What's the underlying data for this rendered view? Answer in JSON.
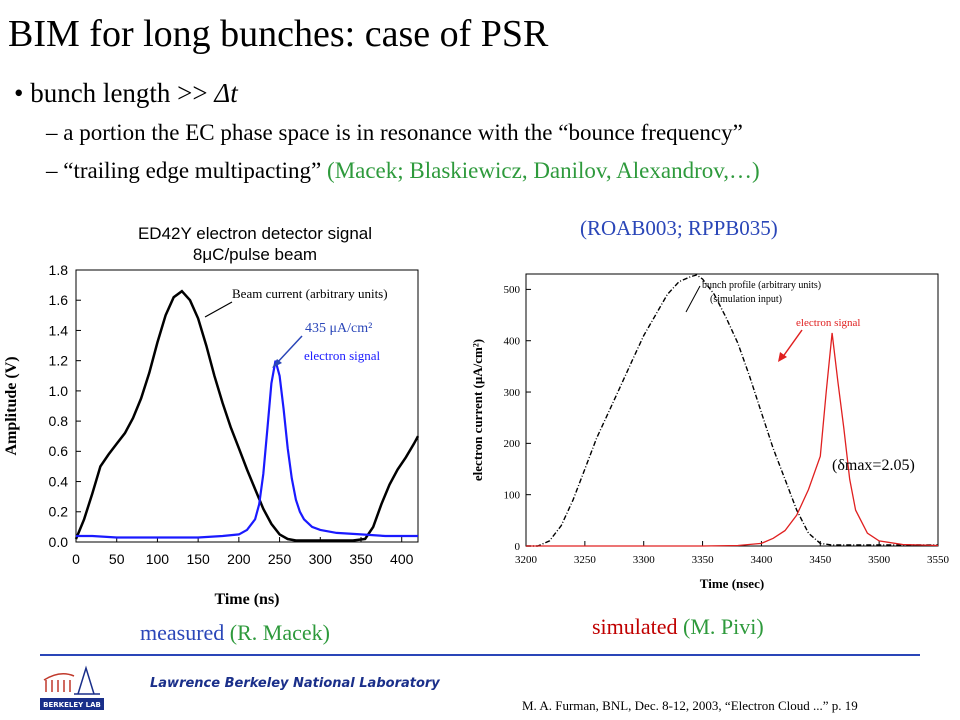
{
  "slide": {
    "title": "BIM for long bunches: case of PSR",
    "bullet_prefix": "• bunch length  >>  ",
    "bullet_delta": "Δt",
    "sub1": "– a portion the EC phase space is in resonance with the “bounce frequency”",
    "sub2_black": "– “trailing edge multipacting” ",
    "sub2_green": "(Macek; Blaskiewicz, Danilov, Alexandrov,…)"
  },
  "left_chart_title": {
    "line1": "ED42Y electron detector signal",
    "line2": "8μC/pulse beam"
  },
  "right_chart_title": "(ROAB003; RPPB035)",
  "captions": {
    "left_blue": "measured ",
    "left_green": "(R. Macek)",
    "right_red": "simulated ",
    "right_green": "(M. Pivi)"
  },
  "footer": {
    "lab": "Lawrence Berkeley National Laboratory",
    "logo_text": "BERKELEY LAB",
    "citation": "M. A. Furman, BNL, Dec. 8-12, 2003, “Electron Cloud ...”  p. 19"
  },
  "colors": {
    "green": "#2e9a3c",
    "blue": "#2a46b8",
    "red": "#e02020",
    "navy": "#1a2f8a"
  },
  "chart_data": [
    {
      "type": "line",
      "title": "ED42Y electron detector signal 8μC/pulse beam",
      "xlabel": "Time (ns)",
      "ylabel": "Amplitude (V)",
      "xlim": [
        0,
        420
      ],
      "ylim": [
        0,
        1.8
      ],
      "x_ticks": [
        0,
        50,
        100,
        150,
        200,
        250,
        300,
        350,
        400
      ],
      "y_ticks": [
        0.0,
        0.2,
        0.4,
        0.6,
        0.8,
        1.0,
        1.2,
        1.4,
        1.6,
        1.8
      ],
      "y_tick_labels": [
        "0.0",
        "0.2",
        "0.4",
        "0.6",
        "0.8",
        "1.0",
        "1.2",
        "1.4",
        "1.6",
        "1.8"
      ],
      "series": [
        {
          "name": "Beam current (arbitrary units)",
          "color": "#000000",
          "x": [
            0,
            10,
            20,
            30,
            40,
            50,
            60,
            70,
            80,
            90,
            100,
            110,
            120,
            130,
            140,
            150,
            160,
            170,
            180,
            190,
            200,
            210,
            220,
            230,
            240,
            250,
            260,
            270,
            280,
            300,
            320,
            340,
            355,
            365,
            375,
            385,
            395,
            405,
            415,
            420
          ],
          "values": [
            0.02,
            0.15,
            0.32,
            0.5,
            0.58,
            0.65,
            0.72,
            0.82,
            0.95,
            1.12,
            1.32,
            1.5,
            1.62,
            1.66,
            1.6,
            1.48,
            1.3,
            1.1,
            0.92,
            0.76,
            0.62,
            0.48,
            0.35,
            0.22,
            0.12,
            0.05,
            0.02,
            0.01,
            0.01,
            0.01,
            0.01,
            0.01,
            0.02,
            0.1,
            0.25,
            0.38,
            0.48,
            0.56,
            0.65,
            0.7
          ]
        },
        {
          "name": "electron signal",
          "color": "#1a1aff",
          "x": [
            0,
            20,
            50,
            100,
            150,
            180,
            200,
            210,
            220,
            225,
            230,
            235,
            240,
            245,
            250,
            255,
            260,
            265,
            270,
            275,
            280,
            290,
            300,
            320,
            350,
            380,
            420
          ],
          "values": [
            0.04,
            0.04,
            0.03,
            0.03,
            0.03,
            0.04,
            0.05,
            0.08,
            0.15,
            0.25,
            0.45,
            0.75,
            1.05,
            1.2,
            1.1,
            0.88,
            0.62,
            0.42,
            0.28,
            0.2,
            0.15,
            0.1,
            0.08,
            0.06,
            0.05,
            0.04,
            0.04
          ]
        }
      ],
      "annotations": [
        "Beam current (arbitrary units)",
        "electron signal",
        "435 μA/cm²"
      ]
    },
    {
      "type": "line",
      "title": "(ROAB003; RPPB035)",
      "xlabel": "Time (nsec)",
      "ylabel": "electron current (μA/cm²)",
      "xlim": [
        3200,
        3550
      ],
      "ylim": [
        0,
        530
      ],
      "x_ticks": [
        3200,
        3250,
        3300,
        3350,
        3400,
        3450,
        3500,
        3550
      ],
      "y_ticks": [
        0,
        100,
        200,
        300,
        400,
        500
      ],
      "series": [
        {
          "name": "bunch profile (arbitrary units)",
          "color": "#000000",
          "dashed": true,
          "x": [
            3200,
            3210,
            3220,
            3230,
            3240,
            3250,
            3260,
            3270,
            3280,
            3290,
            3300,
            3310,
            3320,
            3330,
            3340,
            3345,
            3350,
            3360,
            3370,
            3380,
            3390,
            3400,
            3410,
            3420,
            3430,
            3440,
            3450,
            3460,
            3480,
            3500,
            3550
          ],
          "values": [
            0,
            0,
            10,
            40,
            90,
            150,
            210,
            260,
            310,
            360,
            410,
            450,
            490,
            515,
            525,
            528,
            520,
            490,
            445,
            395,
            330,
            260,
            190,
            130,
            70,
            25,
            5,
            2,
            2,
            2,
            2
          ]
        },
        {
          "name": "electron signal",
          "color": "#e02020",
          "x": [
            3200,
            3250,
            3300,
            3350,
            3380,
            3400,
            3410,
            3420,
            3430,
            3440,
            3450,
            3455,
            3460,
            3465,
            3470,
            3475,
            3480,
            3490,
            3500,
            3520,
            3550
          ],
          "values": [
            0,
            0,
            0,
            0,
            1,
            5,
            15,
            30,
            60,
            110,
            175,
            300,
            415,
            320,
            230,
            130,
            70,
            25,
            10,
            3,
            1
          ]
        }
      ],
      "annotations": [
        "bunch profile (arbitrary units)",
        "(simulation input)",
        "electron signal",
        "(δmax=2.05)"
      ]
    }
  ]
}
